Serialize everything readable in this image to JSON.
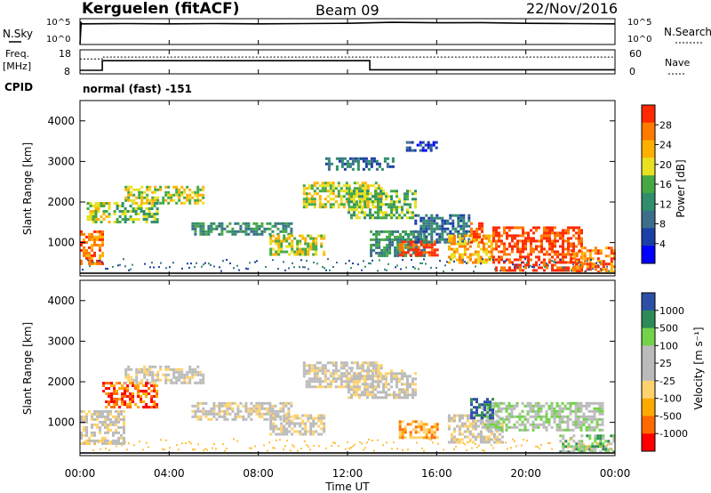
{
  "header": {
    "station": "Kerguelen (fitACF)",
    "beam": "Beam 09",
    "date": "22/Nov/2016"
  },
  "panels": {
    "noise": {
      "left_label": "N.Sky",
      "right_label": "N.Search",
      "ticks_left": [
        "10^5",
        "10^0"
      ],
      "ticks_right": [
        "10^5",
        "10^0"
      ]
    },
    "freq": {
      "left_label_line1": "Freq.",
      "left_label_line2": "[MHz]",
      "ticks_left": [
        "18",
        "8"
      ],
      "ticks_right": [
        "60",
        "0"
      ],
      "right_label": "Nave"
    },
    "cpid": {
      "label": "CPID",
      "value": "normal (fast) -151"
    },
    "power": {
      "ylabel": "Slant Range [km]",
      "colorbar_label": "Power [dB]",
      "colorbar_ticks": [
        "28",
        "24",
        "20",
        "16",
        "12",
        "8",
        "4"
      ]
    },
    "velocity": {
      "ylabel": "Slant Range [km]",
      "colorbar_label": "Velocity [m s⁻¹]",
      "colorbar_ticks": [
        "1000",
        "500",
        "100",
        "25",
        "-25",
        "-100",
        "-500",
        "-1000"
      ]
    }
  },
  "xaxis": {
    "label": "Time UT",
    "ticks": [
      "00:00",
      "04:00",
      "08:00",
      "12:00",
      "16:00",
      "20:00",
      "00:00"
    ]
  },
  "colors": {
    "power_scale": [
      "#0000ff",
      "#1a3fa6",
      "#3c6e8c",
      "#2f8f6a",
      "#45a845",
      "#e8e020",
      "#ffb000",
      "#ff7a00",
      "#ff2a00"
    ],
    "velocity_scale": [
      "#ff0000",
      "#ff6a00",
      "#ffaa00",
      "#ffd26e",
      "#bbbbbb",
      "#bbbbbb",
      "#72d34a",
      "#2e8b57",
      "#2e4fa8"
    ]
  },
  "chart_data": [
    {
      "type": "line",
      "name": "noise",
      "x_hours": [
        0,
        0.05,
        0.1,
        2,
        4,
        6,
        8,
        10,
        12,
        14,
        16,
        18,
        20,
        22,
        24
      ],
      "y_log10": [
        0,
        4.2,
        4.0,
        4.05,
        4.0,
        4.05,
        4.0,
        4.05,
        4.1,
        4.3,
        4.2,
        4.25,
        4.1,
        4.05,
        4.0
      ],
      "ylim_log10": [
        0,
        5
      ]
    },
    {
      "type": "line",
      "name": "frequency",
      "x_hours": [
        0,
        1.0,
        1.0,
        13.0,
        13.0,
        24
      ],
      "y_mhz": [
        9.5,
        9.5,
        13.5,
        13.5,
        9.7,
        9.7
      ],
      "ylim_mhz": [
        8,
        18
      ],
      "nave_x_hours": [
        0,
        1.0,
        1.0,
        24
      ],
      "nave": [
        37,
        37,
        42,
        42
      ],
      "nave_ylim": [
        0,
        60
      ]
    },
    {
      "type": "heatmap",
      "name": "power",
      "x_range_hours": [
        0,
        24
      ],
      "y_range_km": [
        180,
        4500
      ],
      "y_ticks_km": [
        1000,
        2000,
        3000,
        4000
      ],
      "regions": [
        {
          "t0": 0,
          "t1": 1.0,
          "r0": 500,
          "r1": 1300,
          "level": 7
        },
        {
          "t0": 0.3,
          "t1": 1.3,
          "r0": 1500,
          "r1": 2000,
          "level": 5
        },
        {
          "t0": 1.5,
          "t1": 3.5,
          "r0": 1500,
          "r1": 2000,
          "level": 4
        },
        {
          "t0": 2.0,
          "t1": 5.5,
          "r0": 2000,
          "r1": 2400,
          "level": 5
        },
        {
          "t0": 5.0,
          "t1": 9.5,
          "r0": 1200,
          "r1": 1500,
          "level": 3
        },
        {
          "t0": 8.5,
          "t1": 11.0,
          "r0": 700,
          "r1": 1200,
          "level": 5
        },
        {
          "t0": 10.0,
          "t1": 13.5,
          "r0": 1900,
          "r1": 2500,
          "level": 5
        },
        {
          "t0": 12.0,
          "t1": 15.0,
          "r0": 1600,
          "r1": 2300,
          "level": 4
        },
        {
          "t0": 13.0,
          "t1": 15.5,
          "r0": 700,
          "r1": 1300,
          "level": 3
        },
        {
          "t0": 14.3,
          "t1": 16.0,
          "r0": 700,
          "r1": 1050,
          "level": 8
        },
        {
          "t0": 15.0,
          "t1": 17.5,
          "r0": 1000,
          "r1": 1700,
          "level": 2
        },
        {
          "t0": 16.5,
          "t1": 18.5,
          "r0": 500,
          "r1": 1200,
          "level": 6
        },
        {
          "t0": 17.5,
          "t1": 18.0,
          "r0": 1000,
          "r1": 1500,
          "level": 8
        },
        {
          "t0": 18.5,
          "t1": 22.5,
          "r0": 300,
          "r1": 1400,
          "level": 8
        },
        {
          "t0": 22.0,
          "t1": 24.0,
          "r0": 300,
          "r1": 900,
          "level": 7
        },
        {
          "t0": 14.5,
          "t1": 16.0,
          "r0": 3300,
          "r1": 3500,
          "level": 1
        },
        {
          "t0": 11.0,
          "t1": 14.0,
          "r0": 2800,
          "r1": 3100,
          "level": 2
        }
      ]
    },
    {
      "type": "heatmap",
      "name": "velocity",
      "x_range_hours": [
        0,
        24
      ],
      "y_range_km": [
        180,
        4500
      ],
      "y_ticks_km": [
        1000,
        2000,
        3000,
        4000
      ],
      "regions": [
        {
          "t0": 0,
          "t1": 2.0,
          "r0": 500,
          "r1": 1300,
          "level": 4
        },
        {
          "t0": 1.0,
          "t1": 3.5,
          "r0": 1400,
          "r1": 2000,
          "level": 1
        },
        {
          "t0": 2.0,
          "t1": 5.5,
          "r0": 2000,
          "r1": 2400,
          "level": 4
        },
        {
          "t0": 5.0,
          "t1": 9.5,
          "r0": 1100,
          "r1": 1500,
          "level": 4
        },
        {
          "t0": 8.5,
          "t1": 11.0,
          "r0": 700,
          "r1": 1200,
          "level": 4
        },
        {
          "t0": 10.0,
          "t1": 13.5,
          "r0": 1900,
          "r1": 2500,
          "level": 4
        },
        {
          "t0": 12.0,
          "t1": 15.0,
          "r0": 1600,
          "r1": 2300,
          "level": 4
        },
        {
          "t0": 14.3,
          "t1": 16.0,
          "r0": 600,
          "r1": 1050,
          "level": 2
        },
        {
          "t0": 16.5,
          "t1": 19.0,
          "r0": 500,
          "r1": 1200,
          "level": 4
        },
        {
          "t0": 18.0,
          "t1": 23.5,
          "r0": 800,
          "r1": 1500,
          "level": 5
        },
        {
          "t0": 21.5,
          "t1": 24.0,
          "r0": 300,
          "r1": 700,
          "level": 6
        },
        {
          "t0": 17.5,
          "t1": 18.5,
          "r0": 1100,
          "r1": 1600,
          "level": 8
        }
      ]
    }
  ]
}
